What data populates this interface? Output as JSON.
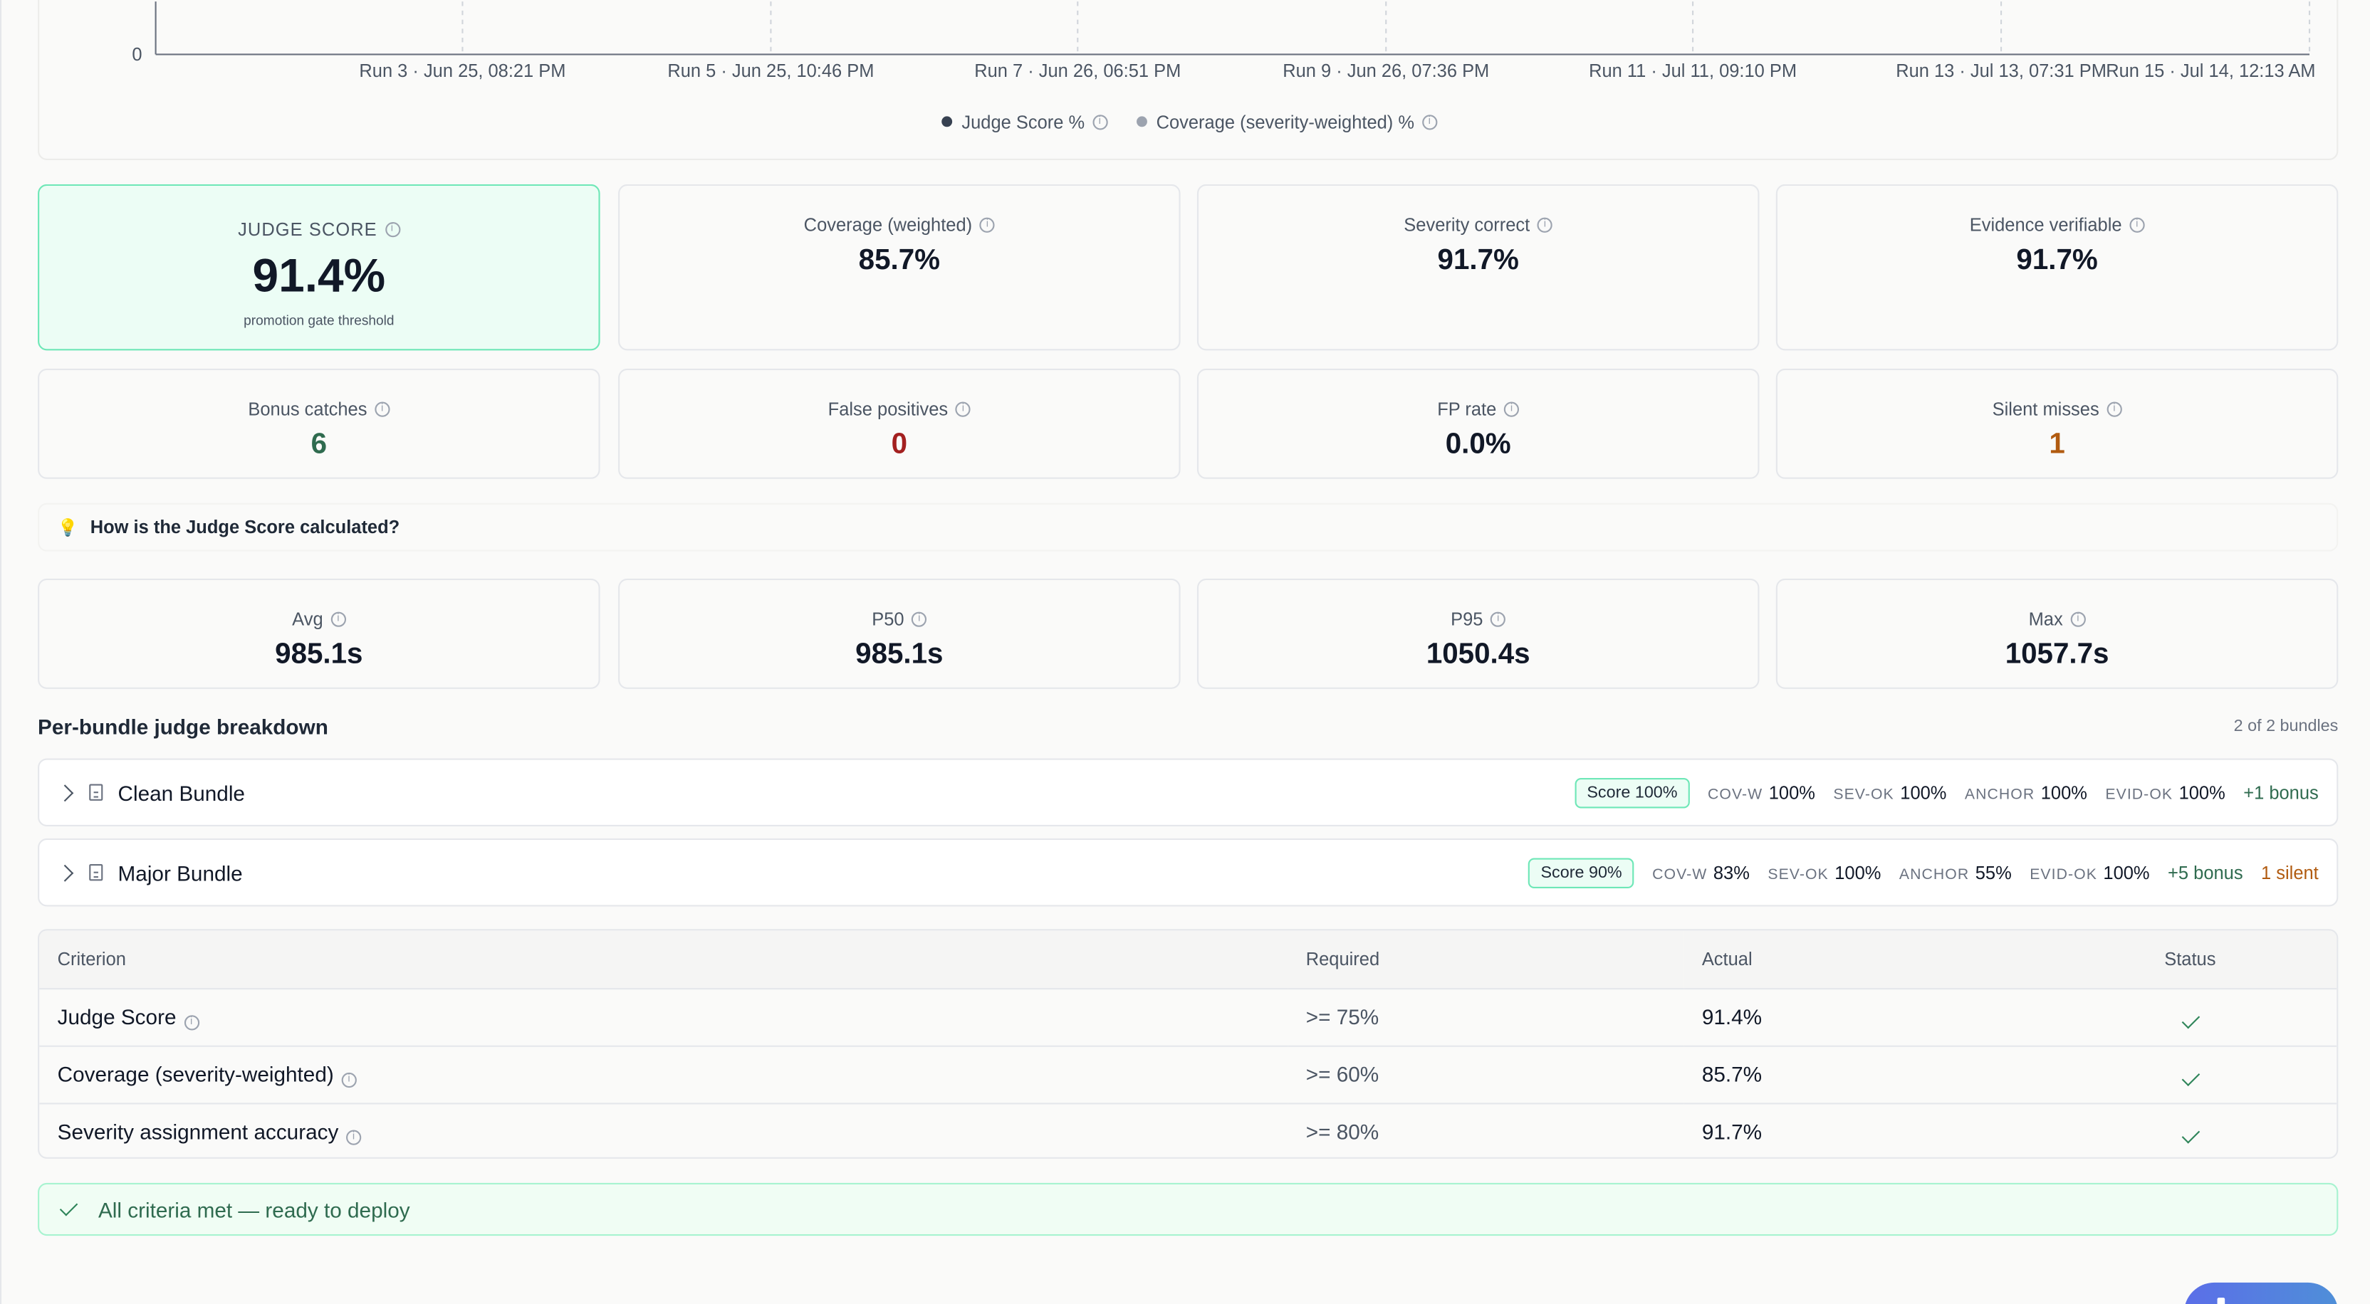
{
  "chart": {
    "y_zero_label": "0",
    "x_ticks": [
      "Run 3 · Jun 25, 08:21 PM",
      "Run 5 · Jun 25, 10:46 PM",
      "Run 7 · Jun 26, 06:51 PM",
      "Run 9 · Jun 26, 07:36 PM",
      "Run 11 · Jul 11, 09:10 PM",
      "Run 13 · Jul 13, 07:31 PM",
      "Run 15 · Jul 14, 12:13 AM"
    ],
    "legend": [
      {
        "label": "Judge Score %",
        "color": "#374151"
      },
      {
        "label": "Coverage (severity-weighted) %",
        "color": "#9ca3af"
      }
    ]
  },
  "metrics_top": [
    {
      "label": "JUDGE SCORE",
      "value": "91.4%",
      "sub": "promotion gate threshold"
    },
    {
      "label": "Coverage (weighted)",
      "value": "85.7%"
    },
    {
      "label": "Severity correct",
      "value": "91.7%"
    },
    {
      "label": "Evidence verifiable",
      "value": "91.7%"
    }
  ],
  "metrics_mid": [
    {
      "label": "Bonus catches",
      "value": "6"
    },
    {
      "label": "False positives",
      "value": "0"
    },
    {
      "label": "FP rate",
      "value": "0.0%"
    },
    {
      "label": "Silent misses",
      "value": "1"
    }
  ],
  "howto": {
    "icon": "lightbulb-icon",
    "label": "How is the Judge Score calculated?"
  },
  "latency": [
    {
      "label": "Avg",
      "value": "985.1s"
    },
    {
      "label": "P50",
      "value": "985.1s"
    },
    {
      "label": "P95",
      "value": "1050.4s"
    },
    {
      "label": "Max",
      "value": "1057.7s"
    }
  ],
  "breakdown": {
    "title": "Per-bundle judge breakdown",
    "count": "2 of 2 bundles",
    "bundles": [
      {
        "name": "Clean Bundle",
        "score": "Score 100%",
        "cov_k": "COV-W",
        "cov": "100%",
        "sev_k": "SEV-OK",
        "sev": "100%",
        "anchor_k": "ANCHOR",
        "anchor": "100%",
        "evid_k": "EVID-OK",
        "evid": "100%",
        "bonus": "+1 bonus"
      },
      {
        "name": "Major Bundle",
        "score": "Score 90%",
        "cov_k": "COV-W",
        "cov": "83%",
        "sev_k": "SEV-OK",
        "sev": "100%",
        "anchor_k": "ANCHOR",
        "anchor": "55%",
        "evid_k": "EVID-OK",
        "evid": "100%",
        "bonus": "+5 bonus",
        "silent": "1 silent"
      }
    ]
  },
  "criteria": {
    "headers": {
      "criterion": "Criterion",
      "required": "Required",
      "actual": "Actual",
      "status": "Status"
    },
    "rows": [
      {
        "criterion": "Judge Score",
        "required": ">= 75%",
        "actual": "91.4%"
      },
      {
        "criterion": "Coverage (severity-weighted)",
        "required": ">= 60%",
        "actual": "85.7%"
      },
      {
        "criterion": "Severity assignment accuracy",
        "required": ">= 80%",
        "actual": "91.7%"
      }
    ]
  },
  "ready": {
    "label": "All criteria met — ready to deploy"
  },
  "colors": {
    "accent_green": "#2f6b4f",
    "danger": "#a32020",
    "warning": "#b15b10",
    "highlight_bg": "#ecfdf5"
  }
}
